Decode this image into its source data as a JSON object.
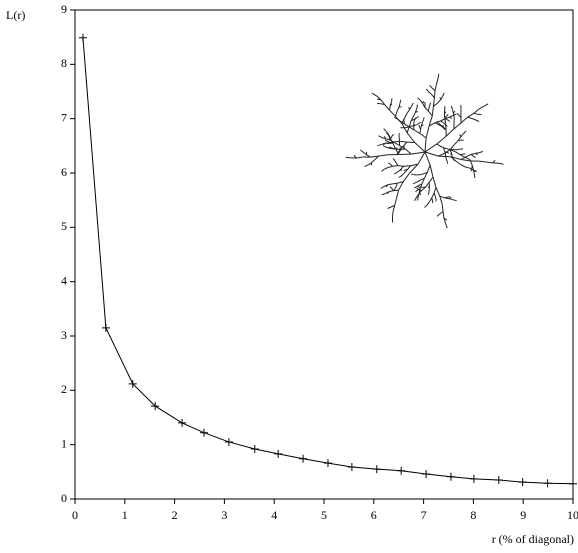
{
  "chart_data": {
    "type": "line",
    "y_label": "L(r)",
    "x_label": "r (% of diagonal)",
    "x": [
      0.16,
      0.62,
      1.16,
      1.61,
      2.15,
      2.59,
      3.09,
      3.61,
      4.08,
      4.58,
      5.08,
      5.56,
      6.06,
      6.55,
      7.05,
      7.55,
      8.01,
      8.51,
      8.99,
      9.49,
      10.0
    ],
    "series": [
      {
        "color": "#000000",
        "values": [
          8.49,
          3.15,
          2.12,
          1.71,
          1.4,
          1.22,
          1.05,
          0.92,
          0.83,
          0.74,
          0.66,
          0.59,
          0.55,
          0.52,
          0.46,
          0.41,
          0.37,
          0.35,
          0.31,
          0.29,
          0.28
        ]
      }
    ],
    "xlim": [
      0,
      10
    ],
    "ylim": [
      0,
      9
    ],
    "xticks": [
      0,
      1,
      2,
      3,
      4,
      5,
      6,
      7,
      8,
      9,
      10
    ],
    "yticks": [
      0,
      1,
      2,
      3,
      4,
      5,
      6,
      7,
      8,
      9
    ]
  }
}
